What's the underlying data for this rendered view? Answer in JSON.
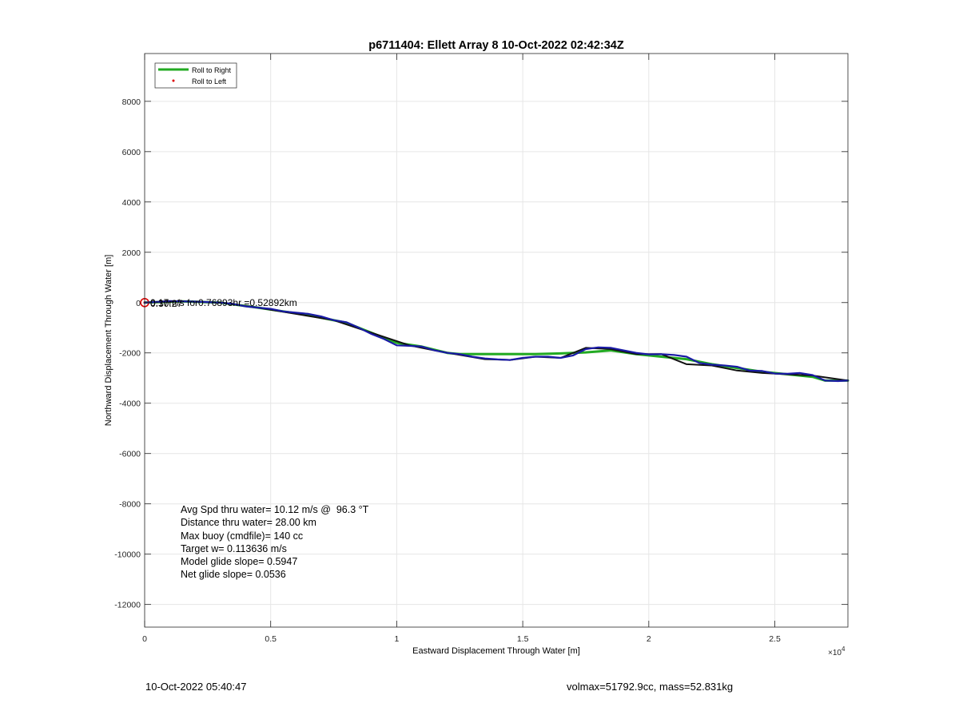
{
  "chart_data": {
    "type": "line",
    "title": "p6711404: Ellett Array 8 10-Oct-2022 02:42:34Z",
    "xlabel": "Eastward Displacement Through Water [m]",
    "ylabel": "Northward Displacement Through Water [m]",
    "x_exponent_label": "×10",
    "x_exponent_power": "4",
    "xlim": [
      0,
      27900
    ],
    "ylim": [
      -12900,
      9900
    ],
    "x_ticks": [
      0,
      5000,
      10000,
      15000,
      20000,
      25000
    ],
    "x_tick_labels": [
      "0",
      "0.5",
      "1",
      "1.5",
      "2",
      "2.5"
    ],
    "y_ticks": [
      8000,
      6000,
      4000,
      2000,
      0,
      -2000,
      -4000,
      -6000,
      -8000,
      -10000,
      -12000
    ],
    "y_tick_labels": [
      "8000",
      "6000",
      "4000",
      "2000",
      "0",
      "-2000",
      "-4000",
      "-6000",
      "-8000",
      "-10000",
      "-12000"
    ],
    "grid": true,
    "legend_placement": "top-left",
    "legend": [
      {
        "label": "Roll to Right",
        "color": "#22aa22",
        "style": "line"
      },
      {
        "label": "Roll to Left",
        "color": "#dd0000",
        "style": "dot"
      }
    ],
    "series": [
      {
        "name": "Roll to Right",
        "color": "#22aa22",
        "x": [
          0,
          1500,
          3000,
          4500,
          5500,
          6500,
          8000,
          9000,
          10000,
          11000,
          12000,
          12500,
          13500,
          14500,
          15500,
          16500,
          17500,
          18500,
          19500,
          20500,
          21500,
          22500,
          23500,
          24500,
          25500,
          26500,
          27000,
          27900
        ],
        "y": [
          0,
          50,
          0,
          -200,
          -350,
          -500,
          -800,
          -1200,
          -1600,
          -1750,
          -2000,
          -2050,
          -2050,
          -2050,
          -2050,
          -2020,
          -1980,
          -1900,
          -2050,
          -2150,
          -2250,
          -2450,
          -2600,
          -2750,
          -2850,
          -2950,
          -3100,
          -3100
        ]
      },
      {
        "name": "Roll to Left",
        "color": "#dd0000",
        "x": [
          0
        ],
        "y": [
          0
        ]
      },
      {
        "color": "#111111",
        "x": [
          0,
          1500,
          3000,
          4500,
          6000,
          7500,
          9000,
          10500,
          11500,
          12500,
          13500,
          14500,
          15500,
          16500,
          17500,
          18500,
          19500,
          20500,
          21500,
          22500,
          23500,
          24500,
          25500,
          26500,
          27900
        ],
        "y": [
          0,
          50,
          0,
          -200,
          -450,
          -700,
          -1200,
          -1700,
          -1900,
          -2080,
          -2250,
          -2280,
          -2150,
          -2200,
          -1800,
          -1850,
          -2050,
          -2050,
          -2450,
          -2500,
          -2700,
          -2800,
          -2850,
          -2900,
          -3100
        ]
      },
      {
        "color": "#1a1aa6",
        "x": [
          0,
          500,
          1000,
          1500,
          2000,
          2500,
          3000,
          3500,
          4000,
          4500,
          5000,
          5500,
          6000,
          6500,
          7000,
          7500,
          8000,
          8500,
          9000,
          9500,
          10000,
          10500,
          11000,
          11500,
          12000,
          12500,
          13000,
          13500,
          14000,
          14500,
          15000,
          15500,
          16000,
          16500,
          17000,
          17500,
          18000,
          18500,
          19000,
          19500,
          20000,
          20500,
          21000,
          21500,
          22000,
          22500,
          23000,
          23500,
          24000,
          24500,
          25000,
          25500,
          26000,
          26500,
          27000,
          27500,
          27900
        ],
        "y": [
          0,
          30,
          60,
          50,
          40,
          20,
          0,
          -50,
          -150,
          -200,
          -250,
          -350,
          -400,
          -450,
          -550,
          -700,
          -780,
          -1000,
          -1250,
          -1450,
          -1700,
          -1720,
          -1750,
          -1900,
          -2000,
          -2050,
          -2150,
          -2220,
          -2260,
          -2280,
          -2200,
          -2150,
          -2150,
          -2200,
          -2100,
          -1850,
          -1780,
          -1800,
          -1900,
          -2000,
          -2060,
          -2050,
          -2080,
          -2150,
          -2400,
          -2470,
          -2500,
          -2550,
          -2700,
          -2720,
          -2820,
          -2830,
          -2800,
          -2880,
          -3100,
          -3120,
          -3100
        ]
      }
    ],
    "annotations": {
      "start_label": "0.17m/s for0.76893hr =0.52892km",
      "start_label_overlap": "0:30:27"
    },
    "stats": [
      "Avg Spd thru water= 10.12 m/s @  96.3 °T",
      "Distance thru water= 28.00 km",
      "Max buoy (cmdfile)= 140 cc",
      "Target w= 0.113636 m/s",
      "Model glide slope= 0.5947",
      "Net glide slope= 0.0536"
    ]
  },
  "footer": {
    "left": "10-Oct-2022 05:40:47",
    "right": "volmax=51792.9cc, mass=52.831kg"
  }
}
